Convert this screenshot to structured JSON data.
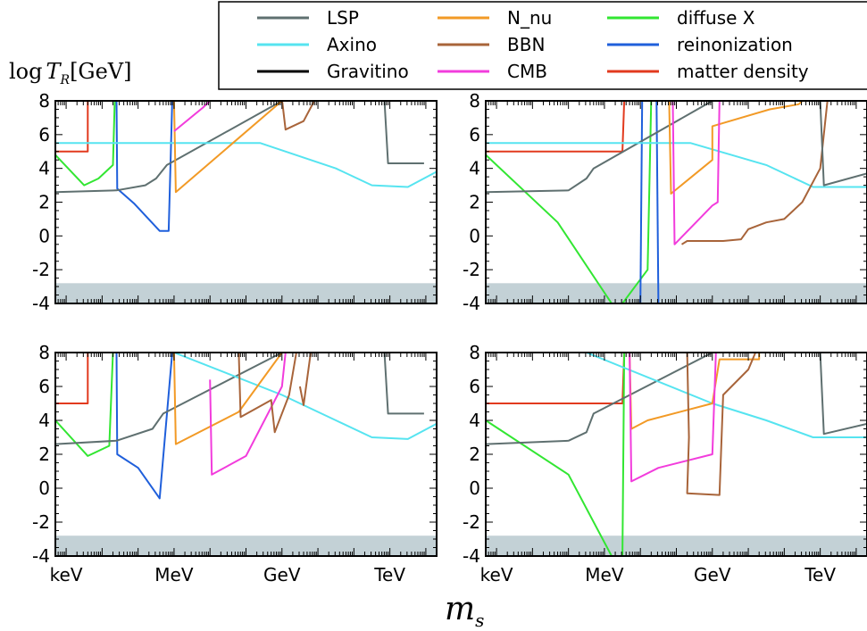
{
  "chart_data": {
    "type": "line",
    "ylabel": "log T_R [GeV]",
    "ylabel_parts": {
      "main": "log",
      "var": "T",
      "sub": "R",
      "unit": "[GeV]"
    },
    "xlabel": "m_s",
    "xlabel_parts": {
      "var": "m",
      "sub": "s"
    },
    "x_scale": "log",
    "x_unit": "GeV",
    "xlim_log10_GeV": [
      -6.3,
      4.3
    ],
    "ylim": [
      -4,
      8
    ],
    "yticks": [
      8,
      6,
      4,
      2,
      0,
      -2,
      -4
    ],
    "xticks": [
      {
        "label": "keV",
        "log10_GeV": -6
      },
      {
        "label": "MeV",
        "log10_GeV": -3
      },
      {
        "label": "GeV",
        "log10_GeV": 0
      },
      {
        "label": "TeV",
        "log10_GeV": 3
      }
    ],
    "shaded_band": {
      "ymin": -4,
      "ymax": -2.8,
      "color": "#c3d1d6"
    },
    "legend": {
      "placement": "top",
      "entries": [
        {
          "name": "LSP",
          "color": "#5f7070"
        },
        {
          "name": "Axino",
          "color": "#56e4f0"
        },
        {
          "name": "Gravitino",
          "color": "#000000"
        },
        {
          "name": "N_nu",
          "color": "#f29a26"
        },
        {
          "name": "BBN",
          "color": "#a8643a"
        },
        {
          "name": "CMB",
          "color": "#f23cdc"
        },
        {
          "name": "diffuse X",
          "color": "#32e632"
        },
        {
          "name": "reinonization",
          "color": "#1f5fdb"
        },
        {
          "name": "matter density",
          "color": "#e23a1e"
        }
      ]
    },
    "panels": [
      {
        "position": "top-left",
        "series": [
          {
            "name": "matter density",
            "points": [
              [
                -6.3,
                5.0
              ],
              [
                -5.4,
                5.0
              ],
              [
                -5.4,
                8.0
              ]
            ]
          },
          {
            "name": "diffuse X",
            "points": [
              [
                -6.3,
                4.8
              ],
              [
                -5.5,
                3.0
              ],
              [
                -5.1,
                3.4
              ],
              [
                -4.7,
                4.2
              ],
              [
                -4.65,
                8.0
              ]
            ]
          },
          {
            "name": "reinonization",
            "points": [
              [
                -4.6,
                8.0
              ],
              [
                -4.58,
                2.8
              ],
              [
                -4.1,
                1.9
              ],
              [
                -3.4,
                0.3
              ],
              [
                -3.15,
                0.3
              ],
              [
                -3.05,
                8.0
              ]
            ]
          },
          {
            "name": "LSP",
            "points": [
              [
                -6.3,
                2.6
              ],
              [
                -4.6,
                2.7
              ],
              [
                -3.8,
                3.0
              ],
              [
                -3.5,
                3.4
              ],
              [
                -3.2,
                4.2
              ],
              [
                0.0,
                8.0
              ]
            ]
          },
          {
            "name": "Axino",
            "points": [
              [
                -6.3,
                5.5
              ],
              [
                -4.0,
                5.5
              ],
              [
                -0.6,
                5.5
              ],
              [
                1.5,
                4.0
              ],
              [
                2.5,
                3.0
              ],
              [
                3.5,
                2.9
              ],
              [
                4.3,
                3.8
              ]
            ]
          },
          {
            "name": "N_nu",
            "points": [
              [
                -3.0,
                8.0
              ],
              [
                -2.95,
                2.6
              ],
              [
                0.0,
                8.0
              ],
              [
                2.3,
                8.1
              ]
            ]
          },
          {
            "name": "CMB",
            "points": [
              [
                -3.0,
                6.2
              ],
              [
                -2.2,
                7.6
              ],
              [
                -2.0,
                8.0
              ]
            ]
          },
          {
            "name": "BBN",
            "points": [
              [
                -0.85,
                8.1
              ],
              [
                0.0,
                8.1
              ],
              [
                0.1,
                6.3
              ],
              [
                0.6,
                6.8
              ],
              [
                0.9,
                8.0
              ]
            ]
          },
          {
            "name": "LSP",
            "points": [
              [
                2.85,
                8.0
              ],
              [
                2.95,
                4.3
              ],
              [
                3.95,
                4.3
              ]
            ]
          }
        ]
      },
      {
        "position": "top-right",
        "series": [
          {
            "name": "matter density",
            "points": [
              [
                -6.3,
                5.0
              ],
              [
                -2.5,
                5.0
              ],
              [
                -2.45,
                8.0
              ]
            ]
          },
          {
            "name": "diffuse X",
            "points": [
              [
                -6.3,
                4.8
              ],
              [
                -4.3,
                0.8
              ],
              [
                -2.8,
                -4.0
              ],
              [
                -2.5,
                -4.0
              ],
              [
                -1.8,
                -2.0
              ],
              [
                -1.7,
                8.0
              ]
            ]
          },
          {
            "name": "reinonization",
            "points": [
              [
                -2.0,
                -4.0
              ],
              [
                -1.95,
                8.0
              ]
            ]
          },
          {
            "name": "reinonization",
            "points": [
              [
                -1.55,
                8.0
              ],
              [
                -1.5,
                -4.0
              ]
            ]
          },
          {
            "name": "LSP",
            "points": [
              [
                -6.3,
                2.6
              ],
              [
                -4.0,
                2.7
              ],
              [
                -3.5,
                3.4
              ],
              [
                -3.3,
                4.0
              ],
              [
                0.0,
                8.0
              ]
            ]
          },
          {
            "name": "Axino",
            "points": [
              [
                -6.3,
                5.5
              ],
              [
                -0.6,
                5.5
              ],
              [
                1.5,
                4.2
              ],
              [
                2.8,
                2.9
              ],
              [
                4.3,
                2.9
              ]
            ]
          },
          {
            "name": "N_nu",
            "points": [
              [
                -1.2,
                8.0
              ],
              [
                -1.15,
                2.5
              ],
              [
                0.0,
                4.5
              ],
              [
                0.0,
                6.5
              ],
              [
                1.6,
                7.5
              ],
              [
                2.4,
                7.8
              ],
              [
                2.5,
                8.0
              ]
            ]
          },
          {
            "name": "CMB",
            "points": [
              [
                -1.1,
                8.0
              ],
              [
                -1.05,
                -0.5
              ],
              [
                0.0,
                1.8
              ],
              [
                0.15,
                2.0
              ],
              [
                0.2,
                8.0
              ]
            ]
          },
          {
            "name": "BBN",
            "points": [
              [
                -0.85,
                -0.5
              ],
              [
                -0.7,
                -0.3
              ],
              [
                -0.5,
                -0.3
              ],
              [
                0.3,
                -0.3
              ],
              [
                0.8,
                -0.2
              ],
              [
                1.0,
                0.4
              ],
              [
                1.5,
                0.8
              ],
              [
                2.0,
                1.0
              ],
              [
                2.5,
                2.0
              ],
              [
                3.0,
                4.0
              ],
              [
                3.2,
                8.0
              ]
            ]
          },
          {
            "name": "Axino",
            "points": [
              [
                -1.2,
                8.0
              ]
            ]
          },
          {
            "name": "LSP",
            "points": [
              [
                3.0,
                8.0
              ],
              [
                3.1,
                3.0
              ],
              [
                4.3,
                3.7
              ]
            ]
          }
        ]
      },
      {
        "position": "bottom-left",
        "series": [
          {
            "name": "matter density",
            "points": [
              [
                -6.3,
                5.0
              ],
              [
                -5.4,
                5.0
              ],
              [
                -5.4,
                8.0
              ]
            ]
          },
          {
            "name": "diffuse X",
            "points": [
              [
                -6.3,
                4.0
              ],
              [
                -5.4,
                1.9
              ],
              [
                -4.8,
                2.5
              ],
              [
                -4.7,
                8.0
              ]
            ]
          },
          {
            "name": "reinonization",
            "points": [
              [
                -4.6,
                8.0
              ],
              [
                -4.58,
                2.0
              ],
              [
                -4.0,
                1.2
              ],
              [
                -3.4,
                -0.6
              ],
              [
                -3.05,
                8.0
              ]
            ]
          },
          {
            "name": "LSP",
            "points": [
              [
                -6.3,
                2.6
              ],
              [
                -4.6,
                2.8
              ],
              [
                -3.6,
                3.5
              ],
              [
                -3.3,
                4.4
              ],
              [
                0.0,
                8.0
              ]
            ]
          },
          {
            "name": "Axino",
            "points": [
              [
                -3.0,
                8.0
              ],
              [
                0.0,
                5.5
              ],
              [
                1.5,
                4.0
              ],
              [
                2.5,
                3.0
              ],
              [
                3.5,
                2.9
              ],
              [
                4.3,
                3.8
              ]
            ]
          },
          {
            "name": "N_nu",
            "points": [
              [
                -3.0,
                8.0
              ],
              [
                -2.95,
                2.6
              ],
              [
                -1.2,
                4.5
              ],
              [
                0.0,
                8.0
              ],
              [
                2.3,
                8.1
              ]
            ]
          },
          {
            "name": "CMB",
            "points": [
              [
                -2.0,
                6.4
              ],
              [
                -1.95,
                0.8
              ],
              [
                -1.0,
                1.9
              ],
              [
                0.0,
                6.0
              ],
              [
                0.1,
                8.0
              ]
            ]
          },
          {
            "name": "BBN",
            "points": [
              [
                -1.2,
                8.0
              ],
              [
                -1.15,
                4.2
              ],
              [
                -0.3,
                5.2
              ],
              [
                -0.2,
                3.3
              ],
              [
                0.2,
                5.5
              ],
              [
                0.4,
                8.0
              ]
            ]
          },
          {
            "name": "BBN",
            "points": [
              [
                0.5,
                6.0
              ],
              [
                0.6,
                4.9
              ],
              [
                0.8,
                8.0
              ]
            ]
          },
          {
            "name": "LSP",
            "points": [
              [
                2.85,
                8.0
              ],
              [
                2.95,
                4.4
              ],
              [
                3.95,
                4.4
              ]
            ]
          }
        ]
      },
      {
        "position": "bottom-right",
        "series": [
          {
            "name": "matter density",
            "points": [
              [
                -6.3,
                5.0
              ],
              [
                -2.5,
                5.0
              ],
              [
                -2.45,
                8.0
              ]
            ]
          },
          {
            "name": "diffuse X",
            "points": [
              [
                -6.3,
                4.0
              ],
              [
                -4.0,
                0.8
              ],
              [
                -2.8,
                -4.0
              ],
              [
                -2.5,
                -4.0
              ],
              [
                -2.45,
                8.0
              ]
            ]
          },
          {
            "name": "LSP",
            "points": [
              [
                -6.3,
                2.6
              ],
              [
                -4.0,
                2.8
              ],
              [
                -3.5,
                3.3
              ],
              [
                -3.3,
                4.4
              ],
              [
                0.0,
                8.0
              ]
            ]
          },
          {
            "name": "Axino",
            "points": [
              [
                -3.5,
                8.0
              ],
              [
                0.0,
                5.0
              ],
              [
                1.5,
                4.0
              ],
              [
                2.8,
                3.0
              ],
              [
                4.3,
                3.0
              ]
            ]
          },
          {
            "name": "N_nu",
            "points": [
              [
                -2.3,
                8.0
              ],
              [
                -2.25,
                3.5
              ],
              [
                -1.8,
                4.0
              ],
              [
                0.0,
                5.0
              ],
              [
                0.2,
                7.6
              ],
              [
                1.3,
                7.6
              ],
              [
                1.3,
                8.0
              ]
            ]
          },
          {
            "name": "CMB",
            "points": [
              [
                -2.3,
                8.0
              ],
              [
                -2.25,
                0.4
              ],
              [
                -1.5,
                1.2
              ],
              [
                0.0,
                2.0
              ],
              [
                0.1,
                8.0
              ]
            ]
          },
          {
            "name": "BBN",
            "points": [
              [
                -0.7,
                8.0
              ],
              [
                -0.65,
                3.0
              ],
              [
                -0.7,
                -0.3
              ],
              [
                0.2,
                -0.4
              ],
              [
                0.3,
                5.5
              ],
              [
                1.0,
                7.0
              ],
              [
                1.2,
                8.0
              ]
            ]
          },
          {
            "name": "LSP",
            "points": [
              [
                3.0,
                8.0
              ],
              [
                3.1,
                3.2
              ],
              [
                4.3,
                3.8
              ]
            ]
          }
        ]
      }
    ]
  }
}
